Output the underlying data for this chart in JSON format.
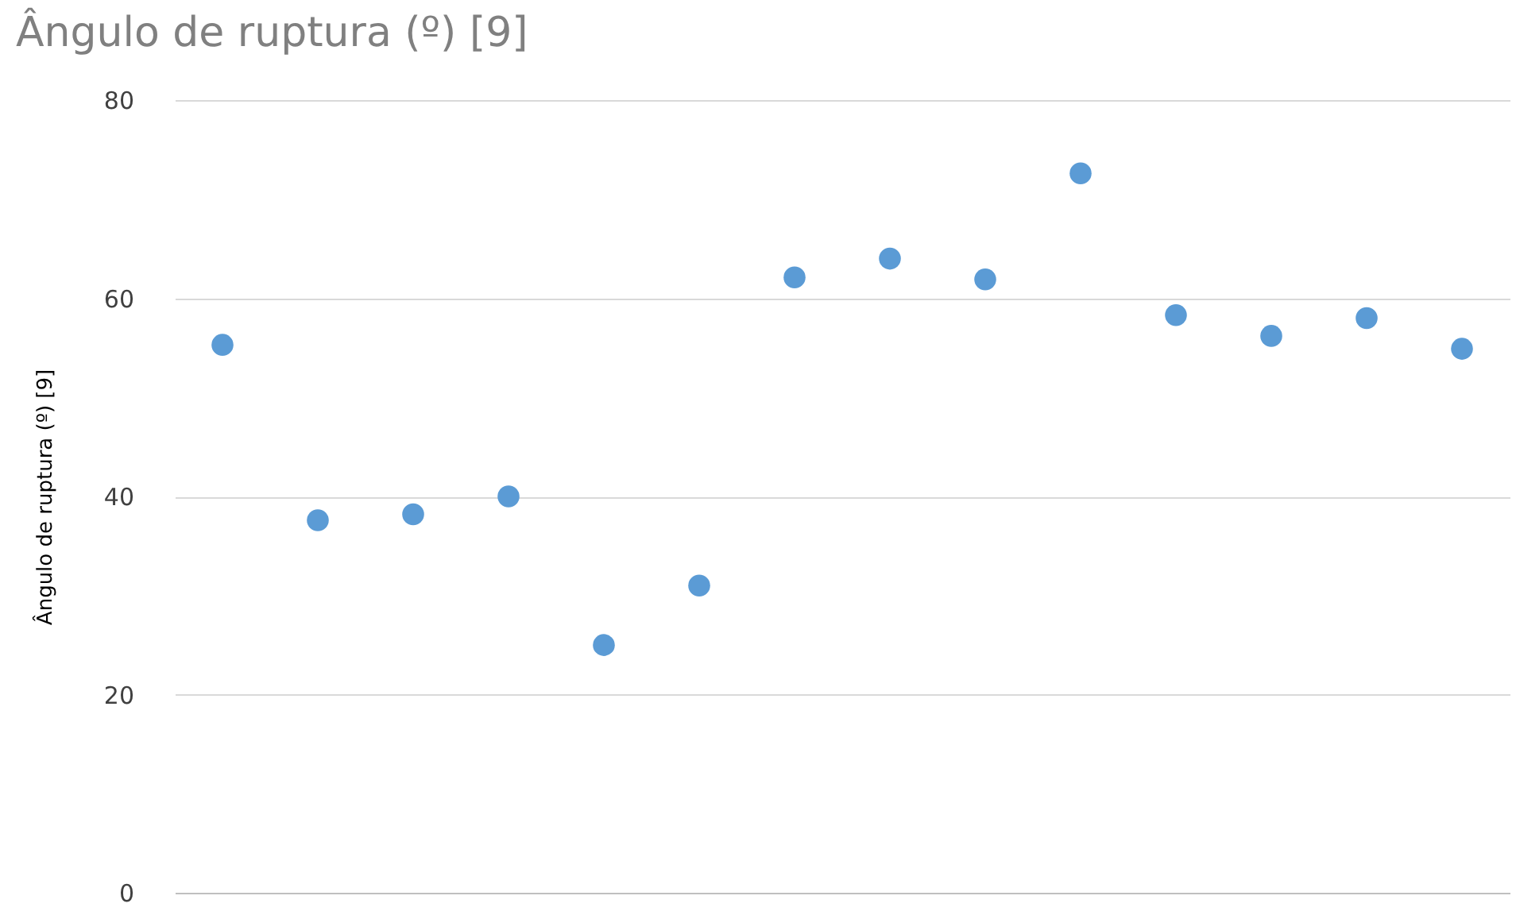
{
  "chart_data": {
    "type": "scatter",
    "title": "Ângulo de ruptura (º) [9]",
    "ylabel": "Ângulo de ruptura (º) [9]",
    "categories": [
      null,
      null,
      null,
      null,
      null,
      null,
      null,
      null,
      null,
      null,
      null,
      null,
      null,
      null
    ],
    "series": [
      {
        "color": "#5b9bd5",
        "values": [
          55.3,
          37.6,
          38.2,
          40.0,
          25.0,
          31.0,
          62.1,
          64.0,
          61.9,
          72.6,
          58.3,
          56.2,
          58.0,
          54.9
        ]
      }
    ],
    "ylim": [
      0,
      80
    ],
    "yticks": [
      0,
      20,
      40,
      60,
      80
    ],
    "grid": "y",
    "marker": "circle",
    "tick_labels": "y",
    "legend": false
  }
}
